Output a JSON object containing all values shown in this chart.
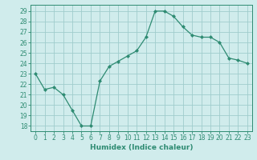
{
  "x": [
    0,
    1,
    2,
    3,
    4,
    5,
    6,
    7,
    8,
    9,
    10,
    11,
    12,
    13,
    14,
    15,
    16,
    17,
    18,
    19,
    20,
    21,
    22,
    23
  ],
  "y": [
    23.0,
    21.5,
    21.7,
    21.0,
    19.5,
    18.0,
    18.0,
    22.3,
    23.7,
    24.2,
    24.7,
    25.2,
    26.5,
    29.0,
    29.0,
    28.5,
    27.5,
    26.7,
    26.5,
    26.5,
    26.0,
    24.5,
    24.3,
    24.0
  ],
  "line_color": "#2e8b72",
  "marker": "D",
  "markersize": 2.0,
  "bg_color": "#d0ecec",
  "grid_color": "#a0cccc",
  "xlabel": "Humidex (Indice chaleur)",
  "ylabel_ticks": [
    18,
    19,
    20,
    21,
    22,
    23,
    24,
    25,
    26,
    27,
    28,
    29
  ],
  "xlim": [
    -0.5,
    23.5
  ],
  "ylim": [
    17.5,
    29.6
  ],
  "tick_fontsize": 5.5,
  "xlabel_fontsize": 6.5
}
